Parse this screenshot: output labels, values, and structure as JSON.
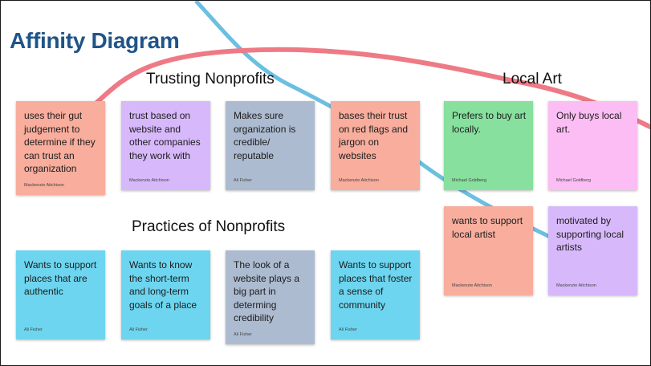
{
  "title": "Affinity Diagram",
  "colors": {
    "title": "#1f5488",
    "curve_red": "#ee7a86",
    "curve_blue": "#6bbfe0",
    "salmon": "#f8ad9d",
    "lavender": "#d7b9fb",
    "slate": "#adbbd0",
    "green": "#87e09e",
    "pink": "#fcbdf4",
    "cyan": "#6dd5ef"
  },
  "groups": {
    "trusting": {
      "label": "Trusting Nonprofits",
      "notes": [
        {
          "text": "uses their gut judgement to determine if they can trust an organization",
          "author": "Mackenzie Aitchison",
          "color": "salmon"
        },
        {
          "text": "trust based on website and other companies they work with",
          "author": "Mackenzie Aitchison",
          "color": "lavender"
        },
        {
          "text": "Makes sure organization is credible/ reputable",
          "author": "Ali Fisher",
          "color": "slate"
        },
        {
          "text": "bases their trust on red flags and jargon on websites",
          "author": "Mackenzie Aitchison",
          "color": "salmon"
        }
      ]
    },
    "local_art": {
      "label": "Local Art",
      "notes": [
        {
          "text": "Prefers to buy art locally.",
          "author": "Michael Goldberg",
          "color": "green"
        },
        {
          "text": "Only buys local art.",
          "author": "Michael Goldberg",
          "color": "pink"
        },
        {
          "text": "wants to support local artist",
          "author": "Mackenzie Aitchison",
          "color": "salmon"
        },
        {
          "text": "motivated by supporting local artists",
          "author": "Mackenzie Aitchison",
          "color": "lavender"
        }
      ]
    },
    "practices": {
      "label": "Practices of Nonprofits",
      "notes": [
        {
          "text": "Wants to support places that are authentic",
          "author": "Ali Fisher",
          "color": "cyan"
        },
        {
          "text": "Wants to know the short-term and long-term goals of a place",
          "author": "Ali Fisher",
          "color": "cyan"
        },
        {
          "text": "The look of a website plays a big part in determing credibility",
          "author": "Ali Fisher",
          "color": "slate"
        },
        {
          "text": "Wants to support places that foster a sense of community",
          "author": "Ali Fisher",
          "color": "cyan"
        }
      ]
    }
  }
}
